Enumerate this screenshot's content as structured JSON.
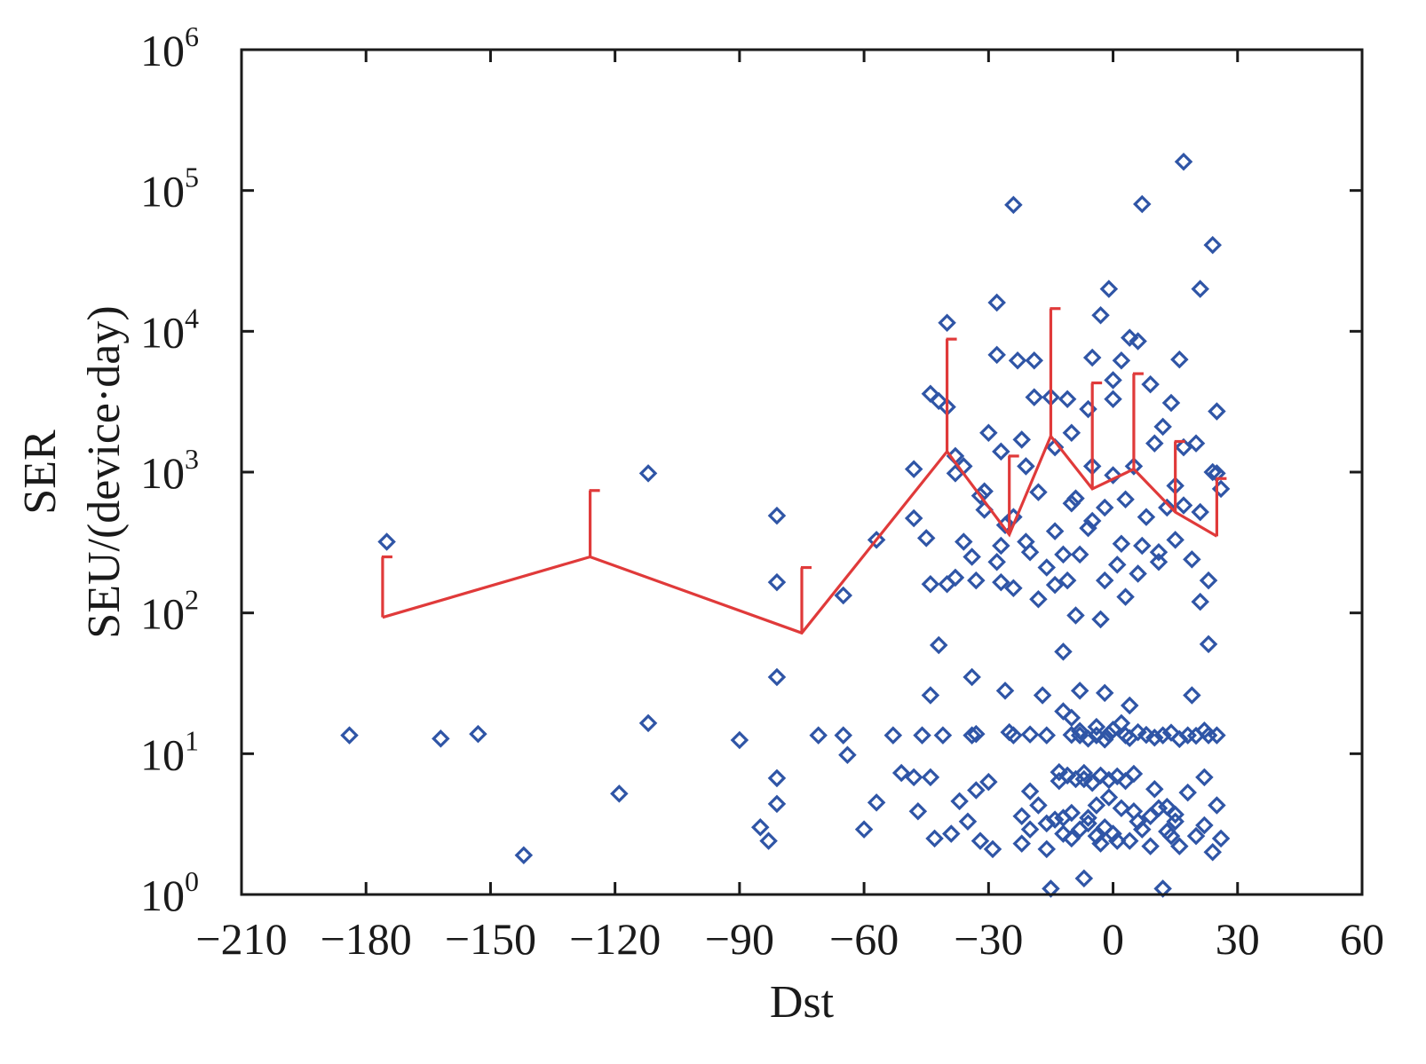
{
  "chart_data": {
    "type": "scatter",
    "title": "",
    "xlabel": "Dst",
    "ylabel": [
      "SER",
      "SEU/(device·day)"
    ],
    "xlim": [
      -210,
      60
    ],
    "ylim": [
      1,
      1000000
    ],
    "yscale": "log",
    "grid": false,
    "x_ticks": [
      {
        "value": -210,
        "label": "−210"
      },
      {
        "value": -180,
        "label": "−180"
      },
      {
        "value": -150,
        "label": "−150"
      },
      {
        "value": -120,
        "label": "−120"
      },
      {
        "value": -90,
        "label": "−90"
      },
      {
        "value": -60,
        "label": "−60"
      },
      {
        "value": -30,
        "label": "−30"
      },
      {
        "value": 0,
        "label": "0"
      },
      {
        "value": 30,
        "label": "30"
      },
      {
        "value": 60,
        "label": "60"
      }
    ],
    "y_ticks": [
      {
        "value": 1,
        "base": "10",
        "exp": "0"
      },
      {
        "value": 10,
        "base": "10",
        "exp": "1"
      },
      {
        "value": 100,
        "base": "10",
        "exp": "2"
      },
      {
        "value": 1000,
        "base": "10",
        "exp": "3"
      },
      {
        "value": 10000,
        "base": "10",
        "exp": "4"
      },
      {
        "value": 100000,
        "base": "10",
        "exp": "5"
      },
      {
        "value": 1000000,
        "base": "10",
        "exp": "6"
      }
    ],
    "colors": {
      "markers": "#2f55a6",
      "trend": "#e03a3a"
    },
    "series": [
      {
        "type": "scatter",
        "marker": "diamond",
        "points": [
          [
            -184,
            13.5
          ],
          [
            -175,
            320
          ],
          [
            -162,
            12.8
          ],
          [
            -153,
            13.8
          ],
          [
            -142,
            1.9
          ],
          [
            -119,
            5.2
          ],
          [
            -112,
            980
          ],
          [
            -112,
            16.5
          ],
          [
            -90,
            12.5
          ],
          [
            -85,
            3.0
          ],
          [
            -83,
            2.4
          ],
          [
            -81,
            490
          ],
          [
            -81,
            165
          ],
          [
            -81,
            35
          ],
          [
            -81,
            6.7
          ],
          [
            -81,
            4.4
          ],
          [
            -71,
            13.5
          ],
          [
            -65,
            133
          ],
          [
            -65,
            13.5
          ],
          [
            -64,
            9.8
          ],
          [
            -60,
            2.9
          ],
          [
            -57,
            330
          ],
          [
            -57,
            4.5
          ],
          [
            -53,
            13.5
          ],
          [
            -51,
            7.3
          ],
          [
            -48,
            1050
          ],
          [
            -48,
            470
          ],
          [
            -48,
            6.8
          ],
          [
            -47,
            3.9
          ],
          [
            -46,
            13.5
          ],
          [
            -45,
            340
          ],
          [
            -44,
            160
          ],
          [
            -44,
            26
          ],
          [
            -44,
            6.8
          ],
          [
            -43,
            2.5
          ],
          [
            -42,
            3200
          ],
          [
            -42,
            59
          ],
          [
            -41,
            13.5
          ],
          [
            -40,
            11500
          ],
          [
            -40,
            2900
          ],
          [
            -40,
            160
          ],
          [
            -39,
            2.7
          ],
          [
            -38,
            1300
          ],
          [
            -38,
            178
          ],
          [
            -37,
            4.6
          ],
          [
            -36,
            320
          ],
          [
            -35,
            3.3
          ],
          [
            -34,
            35
          ],
          [
            -34,
            13.5
          ],
          [
            -33,
            13.8
          ],
          [
            -33,
            5.5
          ],
          [
            -32,
            2.4
          ],
          [
            -31,
            730
          ],
          [
            -31,
            540
          ],
          [
            -30,
            6.3
          ],
          [
            -29,
            2.1
          ],
          [
            -28,
            16000
          ],
          [
            -28,
            6800
          ],
          [
            -27,
            1400
          ],
          [
            -27,
            165
          ],
          [
            -26,
            28
          ],
          [
            -25,
            14.2
          ],
          [
            -24,
            79000
          ],
          [
            -24,
            13.5
          ],
          [
            -23,
            6200
          ],
          [
            -22,
            3.6
          ],
          [
            -22,
            2.3
          ],
          [
            -21,
            1100
          ],
          [
            -21,
            320
          ],
          [
            -20,
            13.7
          ],
          [
            -20,
            5.4
          ],
          [
            -19,
            6200
          ],
          [
            -19,
            3400
          ],
          [
            -18,
            125
          ],
          [
            -17,
            26
          ],
          [
            -16,
            13.5
          ],
          [
            -16,
            2.1
          ],
          [
            -15,
            1.1
          ],
          [
            -14,
            1500
          ],
          [
            -14,
            158
          ],
          [
            -13,
            7.4
          ],
          [
            -12,
            53
          ],
          [
            -12,
            3.5
          ],
          [
            -11,
            3300
          ],
          [
            -11,
            170
          ],
          [
            -10,
            13.6
          ],
          [
            -10,
            2.5
          ],
          [
            -9,
            650
          ],
          [
            -9,
            96
          ],
          [
            -8,
            28
          ],
          [
            -8,
            13.5
          ],
          [
            -7,
            6.6
          ],
          [
            -7,
            1.3
          ],
          [
            -6,
            3.2
          ],
          [
            -5,
            6500
          ],
          [
            -5,
            1100
          ],
          [
            -5,
            450
          ],
          [
            -4,
            13.5
          ],
          [
            -4,
            2.6
          ],
          [
            -3,
            90
          ],
          [
            -3,
            2.3
          ],
          [
            -2,
            170
          ],
          [
            -2,
            27
          ],
          [
            -1,
            13.8
          ],
          [
            -1,
            4.9
          ],
          [
            0,
            950
          ],
          [
            0,
            3300
          ],
          [
            1,
            2.4
          ],
          [
            2,
            6200
          ],
          [
            2,
            310
          ],
          [
            3,
            130
          ],
          [
            3,
            13.5
          ],
          [
            4,
            22
          ],
          [
            5,
            1100
          ],
          [
            5,
            7.2
          ],
          [
            6,
            3.3
          ],
          [
            7,
            80000
          ],
          [
            7,
            300
          ],
          [
            8,
            13.6
          ],
          [
            9,
            2.2
          ],
          [
            10,
            1600
          ],
          [
            10,
            5.6
          ],
          [
            11,
            270
          ],
          [
            12,
            13.5
          ],
          [
            12,
            1.1
          ],
          [
            13,
            4.2
          ],
          [
            14,
            2.6
          ],
          [
            15,
            800
          ],
          [
            15,
            3.3
          ],
          [
            16,
            6300
          ],
          [
            16,
            2.2
          ],
          [
            17,
            160000
          ],
          [
            17,
            580
          ],
          [
            18,
            13.5
          ],
          [
            18,
            5.3
          ],
          [
            19,
            26
          ],
          [
            20,
            1600
          ],
          [
            20,
            2.6
          ],
          [
            21,
            20000
          ],
          [
            21,
            120
          ],
          [
            22,
            6.8
          ],
          [
            22,
            3.1
          ],
          [
            23,
            60
          ],
          [
            23,
            13.5
          ],
          [
            24,
            41000
          ],
          [
            24,
            1000
          ],
          [
            24,
            2.0
          ],
          [
            25,
            2700
          ],
          [
            25,
            13.5
          ],
          [
            25,
            4.3
          ],
          [
            26,
            760
          ],
          [
            26,
            2.5
          ],
          [
            -3,
            13000
          ],
          [
            4,
            9000
          ],
          [
            -1,
            20000
          ],
          [
            -6,
            400
          ],
          [
            -8,
            260
          ],
          [
            -10,
            600
          ],
          [
            -2,
            560
          ],
          [
            1,
            220
          ],
          [
            3,
            640
          ],
          [
            6,
            190
          ],
          [
            8,
            480
          ],
          [
            -12,
            260
          ],
          [
            -14,
            380
          ],
          [
            -16,
            210
          ],
          [
            -18,
            720
          ],
          [
            -20,
            270
          ],
          [
            -22,
            1700
          ],
          [
            -24,
            150
          ],
          [
            -26,
            420
          ],
          [
            -28,
            230
          ],
          [
            -30,
            1900
          ],
          [
            -32,
            680
          ],
          [
            -34,
            250
          ],
          [
            -36,
            1100
          ],
          [
            11,
            230
          ],
          [
            13,
            560
          ],
          [
            15,
            330
          ],
          [
            17,
            1500
          ],
          [
            19,
            240
          ],
          [
            21,
            520
          ],
          [
            23,
            170
          ],
          [
            25,
            980
          ],
          [
            12,
            2100
          ],
          [
            14,
            3100
          ],
          [
            9,
            4200
          ],
          [
            6,
            8500
          ],
          [
            0,
            4500
          ],
          [
            -6,
            2800
          ],
          [
            -10,
            1900
          ],
          [
            -15,
            3400
          ],
          [
            -24,
            480
          ],
          [
            -27,
            300
          ],
          [
            -33,
            170
          ],
          [
            -38,
            980
          ],
          [
            -44,
            3600
          ],
          [
            -13,
            6.4
          ],
          [
            -11,
            7.0
          ],
          [
            -9,
            6.6
          ],
          [
            -7,
            7.3
          ],
          [
            -5,
            6.2
          ],
          [
            -3,
            7.0
          ],
          [
            -1,
            6.5
          ],
          [
            1,
            6.9
          ],
          [
            3,
            6.4
          ],
          [
            5,
            3.9
          ],
          [
            7,
            2.9
          ],
          [
            9,
            3.6
          ],
          [
            11,
            4.1
          ],
          [
            13,
            2.8
          ],
          [
            15,
            3.7
          ],
          [
            -14,
            3.4
          ],
          [
            -12,
            2.7
          ],
          [
            -10,
            3.8
          ],
          [
            -8,
            2.9
          ],
          [
            -6,
            3.5
          ],
          [
            -4,
            4.3
          ],
          [
            -2,
            3.0
          ],
          [
            0,
            2.7
          ],
          [
            2,
            4.1
          ],
          [
            4,
            2.4
          ],
          [
            -20,
            2.9
          ],
          [
            -18,
            4.3
          ],
          [
            -16,
            3.2
          ],
          [
            -12,
            20
          ],
          [
            -10,
            18
          ],
          [
            -8,
            14.5
          ],
          [
            -6,
            12.8
          ],
          [
            -4,
            15.5
          ],
          [
            -2,
            12.6
          ],
          [
            0,
            14.8
          ],
          [
            2,
            16.5
          ],
          [
            4,
            12.9
          ],
          [
            6,
            14.2
          ],
          [
            10,
            13.0
          ],
          [
            14,
            14.1
          ],
          [
            16,
            12.7
          ],
          [
            20,
            13.4
          ],
          [
            22,
            14.6
          ]
        ]
      },
      {
        "type": "line_with_error_bars",
        "points": [
          {
            "x": -176,
            "y": 93,
            "err_high": 250
          },
          {
            "x": -126,
            "y": 250,
            "err_high": 740
          },
          {
            "x": -75,
            "y": 72,
            "err_high": 210
          },
          {
            "x": -40,
            "y": 1400,
            "err_high": 8800
          },
          {
            "x": -25,
            "y": 360,
            "err_high": 1300
          },
          {
            "x": -15,
            "y": 1800,
            "err_high": 14500
          },
          {
            "x": -5,
            "y": 760,
            "err_high": 4300
          },
          {
            "x": 5,
            "y": 1050,
            "err_high": 5000
          },
          {
            "x": 15,
            "y": 520,
            "err_high": 1650
          },
          {
            "x": 25,
            "y": 350,
            "err_high": 900
          }
        ]
      }
    ]
  }
}
